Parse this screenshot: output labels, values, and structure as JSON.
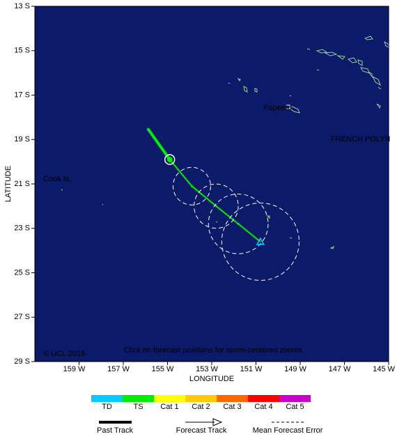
{
  "chart_data": {
    "type": "track",
    "xlabel": "LONGITUDE",
    "ylabel": "LATITUDE",
    "xlim": [
      -161,
      -145
    ],
    "ylim": [
      -29,
      -13
    ],
    "xticks": [
      {
        "value": -159,
        "label": "159 W"
      },
      {
        "value": -157,
        "label": "157 W"
      },
      {
        "value": -155,
        "label": "155 W"
      },
      {
        "value": -153,
        "label": "153 W"
      },
      {
        "value": -151,
        "label": "151 W"
      },
      {
        "value": -149,
        "label": "149 W"
      },
      {
        "value": -147,
        "label": "147 W"
      },
      {
        "value": -145,
        "label": "145 W"
      }
    ],
    "yticks": [
      {
        "value": -13,
        "label": "13 S"
      },
      {
        "value": -15,
        "label": "15 S"
      },
      {
        "value": -17,
        "label": "17 S"
      },
      {
        "value": -19,
        "label": "19 S"
      },
      {
        "value": -21,
        "label": "21 S"
      },
      {
        "value": -23,
        "label": "23 S"
      },
      {
        "value": -25,
        "label": "25 S"
      },
      {
        "value": -27,
        "label": "27 S"
      },
      {
        "value": -29,
        "label": "29 S"
      }
    ],
    "series": [
      {
        "name": "Past Track",
        "color": "#00ee00",
        "x": [
          -155.9,
          -154.9
        ],
        "values": [
          -18.5,
          -19.9
        ]
      },
      {
        "name": "Forecast Track",
        "color": "#00ee00",
        "x": [
          -154.9,
          -153.9,
          -152.8,
          -151.8,
          -150.8
        ],
        "values": [
          -19.9,
          -21.1,
          -22.0,
          -22.8,
          -23.6
        ],
        "point_colors": [
          "#00ee00",
          "#00ee00",
          "#00ee00",
          "#00ee00",
          "#00ccff"
        ],
        "error_name": "Mean Forecast Error",
        "error": [
          null,
          0.85,
          1.0,
          1.35,
          1.75
        ]
      }
    ],
    "intensity": {
      "categories": [
        "TD",
        "TS",
        "Cat 1",
        "Cat 2",
        "Cat 3",
        "Cat 4",
        "Cat 5"
      ],
      "colors": [
        "#00ccff",
        "#00ee00",
        "#ffff00",
        "#ffcc00",
        "#ff6600",
        "#ff0000",
        "#cc00cc"
      ]
    },
    "annotations": [
      "Cook Is.",
      "Papeete",
      "FRENCH POLYN",
      "© UCL 2016",
      "Click on forecast positions for storm-centered zooms"
    ]
  }
}
